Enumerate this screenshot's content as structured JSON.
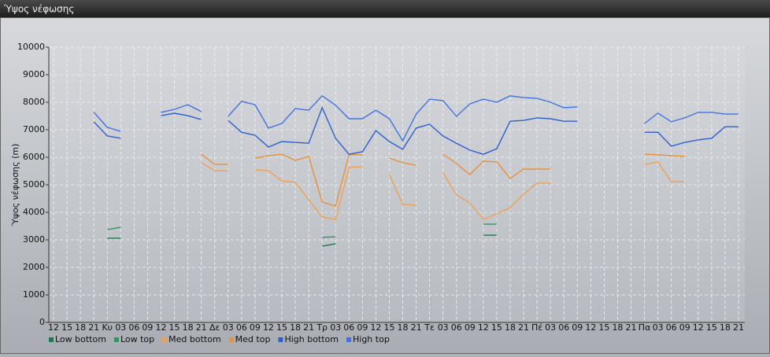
{
  "chart_data": {
    "type": "line",
    "title": "Ύψος νέφωσης",
    "y_label": "Ύψος νέφωσης (m)",
    "categories": [
      "12",
      "15",
      "18",
      "21",
      "Κυ",
      "03",
      "06",
      "09",
      "12",
      "15",
      "18",
      "21",
      "Δε",
      "03",
      "06",
      "09",
      "12",
      "15",
      "18",
      "21",
      "Τρ",
      "03",
      "06",
      "09",
      "12",
      "15",
      "18",
      "21",
      "Τε",
      "03",
      "06",
      "09",
      "12",
      "15",
      "18",
      "21",
      "Πέ",
      "03",
      "06",
      "09",
      "12",
      "15",
      "18",
      "21",
      "Πα",
      "03",
      "06",
      "09",
      "12",
      "15",
      "18",
      "21"
    ],
    "ylim": [
      0,
      10000
    ],
    "yticks": [
      0,
      1000,
      2000,
      3000,
      4000,
      5000,
      6000,
      7000,
      8000,
      9000,
      10000
    ],
    "grid": true,
    "series": [
      {
        "name": "Low bottom",
        "color": "#1b7a4c",
        "values": [
          null,
          null,
          null,
          null,
          3060,
          3060,
          null,
          null,
          null,
          null,
          null,
          null,
          null,
          null,
          null,
          null,
          null,
          null,
          null,
          null,
          2770,
          2860,
          null,
          null,
          null,
          null,
          null,
          null,
          null,
          null,
          null,
          null,
          3170,
          3170,
          null,
          null,
          null,
          null,
          null,
          null,
          null,
          null,
          null,
          null,
          null,
          null,
          null,
          null,
          null,
          null,
          null,
          null
        ]
      },
      {
        "name": "Low top",
        "color": "#2b9a5e",
        "values": [
          null,
          null,
          null,
          null,
          3370,
          3460,
          null,
          null,
          null,
          null,
          null,
          null,
          null,
          null,
          null,
          null,
          null,
          null,
          null,
          null,
          3090,
          3110,
          null,
          null,
          null,
          null,
          null,
          null,
          null,
          null,
          null,
          null,
          3570,
          3570,
          null,
          null,
          null,
          null,
          null,
          null,
          null,
          null,
          null,
          null,
          null,
          null,
          null,
          null,
          null,
          null,
          null,
          null
        ]
      },
      {
        "name": "Med bottom",
        "color": "#f0a055",
        "values": [
          null,
          null,
          null,
          null,
          null,
          null,
          null,
          null,
          null,
          null,
          null,
          5800,
          5510,
          5510,
          null,
          5540,
          5510,
          5140,
          5090,
          4460,
          3830,
          3740,
          5630,
          5660,
          null,
          5370,
          4290,
          4260,
          null,
          5430,
          4630,
          4340,
          3740,
          3940,
          4170,
          4660,
          5060,
          5060,
          null,
          null,
          null,
          null,
          null,
          null,
          5740,
          5830,
          5110,
          5110,
          null,
          null,
          null,
          null
        ]
      },
      {
        "name": "Med top",
        "color": "#e8913c",
        "values": [
          null,
          null,
          null,
          null,
          null,
          null,
          null,
          null,
          null,
          null,
          null,
          6110,
          5740,
          5740,
          null,
          5970,
          6060,
          6110,
          5890,
          6030,
          4370,
          4230,
          6090,
          6090,
          null,
          5970,
          5800,
          5710,
          null,
          6110,
          5770,
          5370,
          5860,
          5830,
          5230,
          5570,
          5570,
          5570,
          null,
          null,
          null,
          null,
          null,
          null,
          6110,
          6090,
          6060,
          6030,
          null,
          null,
          null,
          null
        ]
      },
      {
        "name": "High bottom",
        "color": "#2f5fce",
        "values": [
          null,
          null,
          null,
          7290,
          6770,
          6690,
          null,
          null,
          7510,
          7600,
          7510,
          7370,
          null,
          7340,
          6910,
          6800,
          6370,
          6570,
          6540,
          6510,
          7800,
          6690,
          6110,
          6200,
          6970,
          6570,
          6290,
          7060,
          7200,
          6770,
          6510,
          6260,
          6110,
          6310,
          7310,
          7340,
          7430,
          7400,
          7310,
          7310,
          null,
          null,
          null,
          null,
          6910,
          6910,
          6400,
          6540,
          6630,
          6690,
          7110,
          7110
        ]
      },
      {
        "name": "High top",
        "color": "#4372e0",
        "values": [
          null,
          null,
          null,
          7630,
          7090,
          6940,
          null,
          null,
          7630,
          7740,
          7910,
          7660,
          null,
          7490,
          8030,
          7910,
          7060,
          7230,
          7770,
          7710,
          8230,
          7890,
          7400,
          7400,
          7710,
          7400,
          6600,
          7570,
          8110,
          8060,
          7490,
          7940,
          8110,
          8000,
          8230,
          8170,
          8140,
          8000,
          7800,
          7830,
          null,
          null,
          null,
          null,
          7230,
          7600,
          7290,
          7430,
          7630,
          7630,
          7570,
          7570
        ]
      }
    ]
  }
}
